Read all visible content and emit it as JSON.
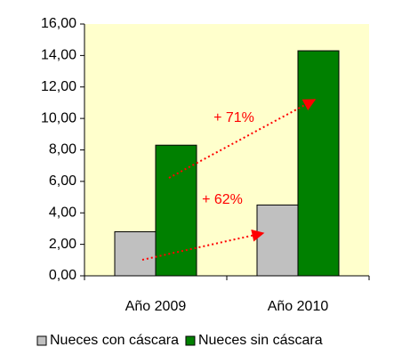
{
  "chart_data": {
    "type": "bar",
    "categories": [
      "Año 2009",
      "Año 2010"
    ],
    "series": [
      {
        "name": "Nueces con cáscara",
        "color": "#c0c0c0",
        "values": [
          2.8,
          4.5
        ]
      },
      {
        "name": "Nueces sin cáscara",
        "color": "#008000",
        "values": [
          8.3,
          14.3
        ]
      }
    ],
    "ylim": [
      0,
      16
    ],
    "yticks": [
      {
        "value": 0,
        "label": "0,00"
      },
      {
        "value": 2,
        "label": "2,00"
      },
      {
        "value": 4,
        "label": "4,00"
      },
      {
        "value": 6,
        "label": "6,00"
      },
      {
        "value": 8,
        "label": "8,00"
      },
      {
        "value": 10,
        "label": "10,00"
      },
      {
        "value": 12,
        "label": "12,00"
      },
      {
        "value": 14,
        "label": "14,00"
      },
      {
        "value": 16,
        "label": "16,00"
      }
    ],
    "annotations": [
      "+ 71%",
      "+ 62%"
    ],
    "background": "#ffffcc",
    "legend": "bottom"
  }
}
